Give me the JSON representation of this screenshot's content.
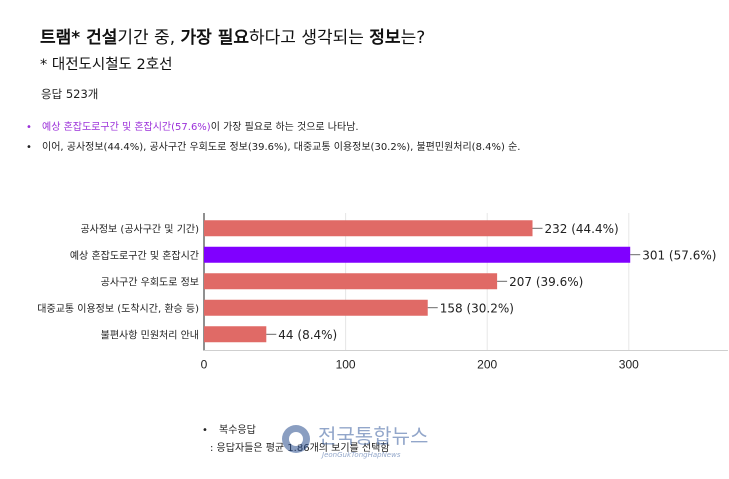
{
  "header": {
    "title_parts": [
      {
        "text": "트램* 건설",
        "bold": true
      },
      {
        "text": "기간 중, ",
        "bold": false
      },
      {
        "text": "가장 필요",
        "bold": true
      },
      {
        "text": "하다고 생각되는 ",
        "bold": false
      },
      {
        "text": "정보",
        "bold": true
      },
      {
        "text": "는?",
        "bold": false
      }
    ],
    "subtitle": "* 대전도시철도 2호선",
    "responses": "응답 523개"
  },
  "summary": {
    "line1_highlight": "예상 혼잡도로구간 및 혼잡시간(57.6%)",
    "line1_rest": "이 가장 필요로 하는 것으로 나타남.",
    "line2": "이어, 공사정보(44.4%), 공사구간 우회도로 정보(39.6%), 대중교통 이용정보(30.2%), 불편민원처리(8.4%) 순."
  },
  "chart_data": {
    "type": "bar",
    "orientation": "horizontal",
    "categories": [
      "공사정보 (공사구간 및 기간)",
      "예상 혼잡도로구간 및 혼잡시간",
      "공사구간 우회도로 정보",
      "대중교통 이용정보 (도착시간, 환승 등)",
      "불편사항 민원처리 안내"
    ],
    "values": [
      232,
      301,
      207,
      158,
      44
    ],
    "data_labels": [
      "232 (44.4%)",
      "301 (57.6%)",
      "207 (39.6%)",
      "158 (30.2%)",
      "44 (8.4%)"
    ],
    "xticks": [
      "0",
      "100",
      "200",
      "300"
    ],
    "xlim": [
      0,
      370
    ],
    "grid": true,
    "colors": {
      "default": "#e06a66",
      "highlight": "#8000ff"
    },
    "highlight_index": 1
  },
  "footnote": {
    "bullet": "복수응답",
    "note": ": 응답자들은 평균 1.86개의 보기를 선택함"
  },
  "watermark": {
    "text": "전국통합뉴스",
    "subtext": "JeonGukTongHapNews"
  }
}
